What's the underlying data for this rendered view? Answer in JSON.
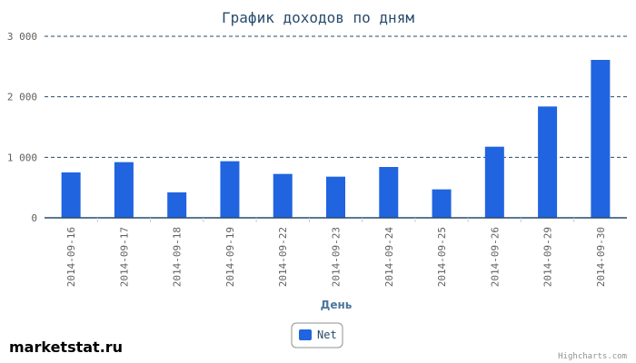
{
  "brand": "marketstat.ru",
  "credit": "Highcharts.com",
  "colors": {
    "bar": "#2064e0",
    "grid": "#274b6d",
    "axis": "#274b6d"
  },
  "chart_data": {
    "type": "bar",
    "title": "График доходов по дням",
    "xlabel": "День",
    "ylabel": "",
    "ylim": [
      0,
      3000
    ],
    "yticks": [
      0,
      1000,
      2000,
      3000
    ],
    "ytick_labels": [
      "0",
      "1 000",
      "2 000",
      "3 000"
    ],
    "grid": "dashed horizontal",
    "legend_position": "bottom-center",
    "categories": [
      "2014-09-16",
      "2014-09-17",
      "2014-09-18",
      "2014-09-19",
      "2014-09-22",
      "2014-09-23",
      "2014-09-24",
      "2014-09-25",
      "2014-09-26",
      "2014-09-29",
      "2014-09-30"
    ],
    "series": [
      {
        "name": "Net",
        "values": [
          750,
          920,
          420,
          935,
          725,
          680,
          840,
          470,
          1175,
          1840,
          2610
        ]
      }
    ]
  }
}
